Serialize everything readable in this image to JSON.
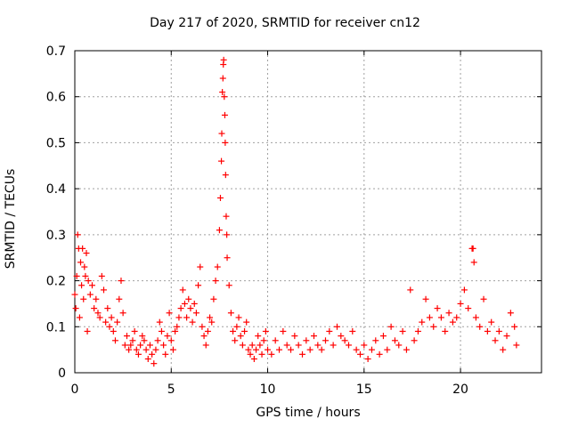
{
  "chart_data": {
    "type": "scatter",
    "title": "Day 217 of 2020, SRMTID for receiver cn12",
    "xlabel": "GPS time / hours",
    "ylabel": "SRMTID / TECUs",
    "xlim": [
      0,
      24.2
    ],
    "ylim": [
      0,
      0.7
    ],
    "x_ticks": [
      0,
      5,
      10,
      15,
      20
    ],
    "x_tick_labels": [
      "0",
      "5",
      "10",
      "15",
      "20"
    ],
    "y_ticks": [
      0,
      0.1,
      0.2,
      0.3,
      0.4,
      0.5,
      0.6,
      0.7
    ],
    "y_tick_labels": [
      "0",
      "0.1",
      "0.2",
      "0.3",
      "0.4",
      "0.5",
      "0.6",
      "0.7"
    ],
    "grid": true,
    "legend": "none",
    "marker": "plus",
    "series": [
      {
        "name": "SRMTID",
        "color": "#ff0000",
        "points": [
          [
            0.0,
            0.17
          ],
          [
            0.05,
            0.14
          ],
          [
            0.1,
            0.21
          ],
          [
            0.15,
            0.3
          ],
          [
            0.2,
            0.27
          ],
          [
            0.25,
            0.12
          ],
          [
            0.3,
            0.24
          ],
          [
            0.35,
            0.19
          ],
          [
            0.4,
            0.27
          ],
          [
            0.45,
            0.16
          ],
          [
            0.5,
            0.23
          ],
          [
            0.55,
            0.21
          ],
          [
            0.6,
            0.26
          ],
          [
            0.65,
            0.09
          ],
          [
            0.7,
            0.2
          ],
          [
            0.8,
            0.17
          ],
          [
            0.9,
            0.19
          ],
          [
            1.0,
            0.14
          ],
          [
            1.1,
            0.16
          ],
          [
            1.2,
            0.13
          ],
          [
            1.3,
            0.12
          ],
          [
            1.4,
            0.21
          ],
          [
            1.5,
            0.18
          ],
          [
            1.6,
            0.11
          ],
          [
            1.7,
            0.14
          ],
          [
            1.8,
            0.1
          ],
          [
            1.9,
            0.12
          ],
          [
            2.0,
            0.09
          ],
          [
            2.1,
            0.07
          ],
          [
            2.2,
            0.11
          ],
          [
            2.3,
            0.16
          ],
          [
            2.4,
            0.2
          ],
          [
            2.5,
            0.13
          ],
          [
            2.6,
            0.06
          ],
          [
            2.7,
            0.08
          ],
          [
            2.8,
            0.05
          ],
          [
            2.9,
            0.06
          ],
          [
            3.0,
            0.07
          ],
          [
            3.1,
            0.09
          ],
          [
            3.2,
            0.05
          ],
          [
            3.3,
            0.04
          ],
          [
            3.4,
            0.06
          ],
          [
            3.5,
            0.08
          ],
          [
            3.6,
            0.07
          ],
          [
            3.7,
            0.05
          ],
          [
            3.8,
            0.03
          ],
          [
            3.9,
            0.06
          ],
          [
            4.0,
            0.04
          ],
          [
            4.1,
            0.02
          ],
          [
            4.2,
            0.05
          ],
          [
            4.3,
            0.07
          ],
          [
            4.4,
            0.11
          ],
          [
            4.5,
            0.09
          ],
          [
            4.6,
            0.06
          ],
          [
            4.7,
            0.04
          ],
          [
            4.8,
            0.08
          ],
          [
            4.9,
            0.13
          ],
          [
            5.0,
            0.07
          ],
          [
            5.1,
            0.05
          ],
          [
            5.2,
            0.09
          ],
          [
            5.3,
            0.1
          ],
          [
            5.4,
            0.12
          ],
          [
            5.5,
            0.14
          ],
          [
            5.6,
            0.18
          ],
          [
            5.7,
            0.15
          ],
          [
            5.8,
            0.12
          ],
          [
            5.9,
            0.16
          ],
          [
            6.0,
            0.14
          ],
          [
            6.1,
            0.11
          ],
          [
            6.2,
            0.15
          ],
          [
            6.3,
            0.13
          ],
          [
            6.4,
            0.19
          ],
          [
            6.5,
            0.23
          ],
          [
            6.6,
            0.1
          ],
          [
            6.7,
            0.08
          ],
          [
            6.8,
            0.06
          ],
          [
            6.9,
            0.09
          ],
          [
            7.0,
            0.12
          ],
          [
            7.1,
            0.11
          ],
          [
            7.2,
            0.16
          ],
          [
            7.3,
            0.2
          ],
          [
            7.4,
            0.23
          ],
          [
            7.5,
            0.31
          ],
          [
            7.55,
            0.38
          ],
          [
            7.6,
            0.46
          ],
          [
            7.62,
            0.52
          ],
          [
            7.65,
            0.61
          ],
          [
            7.68,
            0.64
          ],
          [
            7.7,
            0.67
          ],
          [
            7.72,
            0.68
          ],
          [
            7.75,
            0.6
          ],
          [
            7.78,
            0.56
          ],
          [
            7.8,
            0.5
          ],
          [
            7.82,
            0.43
          ],
          [
            7.85,
            0.34
          ],
          [
            7.88,
            0.3
          ],
          [
            7.9,
            0.25
          ],
          [
            8.0,
            0.19
          ],
          [
            8.1,
            0.13
          ],
          [
            8.2,
            0.09
          ],
          [
            8.3,
            0.07
          ],
          [
            8.4,
            0.1
          ],
          [
            8.5,
            0.12
          ],
          [
            8.6,
            0.08
          ],
          [
            8.7,
            0.06
          ],
          [
            8.8,
            0.09
          ],
          [
            8.9,
            0.11
          ],
          [
            9.0,
            0.05
          ],
          [
            9.1,
            0.04
          ],
          [
            9.2,
            0.06
          ],
          [
            9.3,
            0.03
          ],
          [
            9.4,
            0.05
          ],
          [
            9.5,
            0.08
          ],
          [
            9.6,
            0.06
          ],
          [
            9.7,
            0.04
          ],
          [
            9.8,
            0.07
          ],
          [
            9.9,
            0.09
          ],
          [
            10.0,
            0.05
          ],
          [
            10.2,
            0.04
          ],
          [
            10.4,
            0.07
          ],
          [
            10.6,
            0.05
          ],
          [
            10.8,
            0.09
          ],
          [
            11.0,
            0.06
          ],
          [
            11.2,
            0.05
          ],
          [
            11.4,
            0.08
          ],
          [
            11.6,
            0.06
          ],
          [
            11.8,
            0.04
          ],
          [
            12.0,
            0.07
          ],
          [
            12.2,
            0.05
          ],
          [
            12.4,
            0.08
          ],
          [
            12.6,
            0.06
          ],
          [
            12.8,
            0.05
          ],
          [
            13.0,
            0.07
          ],
          [
            13.2,
            0.09
          ],
          [
            13.4,
            0.06
          ],
          [
            13.6,
            0.1
          ],
          [
            13.8,
            0.08
          ],
          [
            14.0,
            0.07
          ],
          [
            14.2,
            0.06
          ],
          [
            14.4,
            0.09
          ],
          [
            14.6,
            0.05
          ],
          [
            14.8,
            0.04
          ],
          [
            15.0,
            0.06
          ],
          [
            15.2,
            0.03
          ],
          [
            15.4,
            0.05
          ],
          [
            15.6,
            0.07
          ],
          [
            15.8,
            0.04
          ],
          [
            16.0,
            0.08
          ],
          [
            16.2,
            0.05
          ],
          [
            16.4,
            0.1
          ],
          [
            16.6,
            0.07
          ],
          [
            16.8,
            0.06
          ],
          [
            17.0,
            0.09
          ],
          [
            17.2,
            0.05
          ],
          [
            17.4,
            0.18
          ],
          [
            17.6,
            0.07
          ],
          [
            17.8,
            0.09
          ],
          [
            18.0,
            0.11
          ],
          [
            18.2,
            0.16
          ],
          [
            18.4,
            0.12
          ],
          [
            18.6,
            0.1
          ],
          [
            18.8,
            0.14
          ],
          [
            19.0,
            0.12
          ],
          [
            19.2,
            0.09
          ],
          [
            19.4,
            0.13
          ],
          [
            19.6,
            0.11
          ],
          [
            19.8,
            0.12
          ],
          [
            20.0,
            0.15
          ],
          [
            20.2,
            0.18
          ],
          [
            20.4,
            0.14
          ],
          [
            20.6,
            0.27
          ],
          [
            20.65,
            0.27
          ],
          [
            20.7,
            0.24
          ],
          [
            20.8,
            0.12
          ],
          [
            21.0,
            0.1
          ],
          [
            21.2,
            0.16
          ],
          [
            21.4,
            0.09
          ],
          [
            21.6,
            0.11
          ],
          [
            21.8,
            0.07
          ],
          [
            22.0,
            0.09
          ],
          [
            22.2,
            0.05
          ],
          [
            22.4,
            0.08
          ],
          [
            22.6,
            0.13
          ],
          [
            22.8,
            0.1
          ],
          [
            22.9,
            0.06
          ]
        ]
      }
    ]
  }
}
